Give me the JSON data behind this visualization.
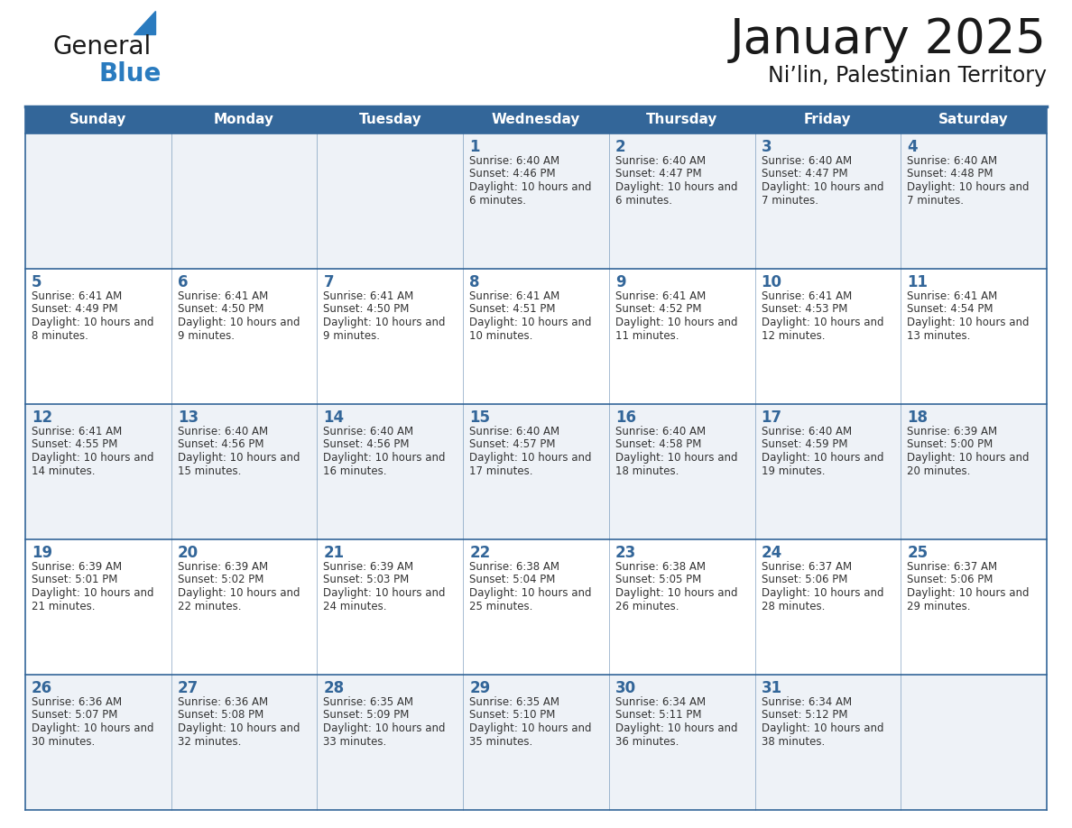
{
  "title": "January 2025",
  "subtitle": "Ni’lin, Palestinian Territory",
  "days_of_week": [
    "Sunday",
    "Monday",
    "Tuesday",
    "Wednesday",
    "Thursday",
    "Friday",
    "Saturday"
  ],
  "header_bg": "#336699",
  "header_text_color": "#ffffff",
  "cell_bg_odd": "#eef2f7",
  "cell_bg_even": "#ffffff",
  "grid_line_color": "#336699",
  "text_color_day": "#336699",
  "text_color_info": "#333333",
  "background_color": "#ffffff",
  "logo_general_color": "#1a1a1a",
  "logo_blue_color": "#2a7bbf",
  "logo_triangle_color": "#2a7bbf",
  "title_color": "#1a1a1a",
  "calendar_data": [
    [
      null,
      null,
      null,
      {
        "day": 1,
        "sunrise": "6:40 AM",
        "sunset": "4:46 PM",
        "daylight": "10 hours and 6 minutes."
      },
      {
        "day": 2,
        "sunrise": "6:40 AM",
        "sunset": "4:47 PM",
        "daylight": "10 hours and 6 minutes."
      },
      {
        "day": 3,
        "sunrise": "6:40 AM",
        "sunset": "4:47 PM",
        "daylight": "10 hours and 7 minutes."
      },
      {
        "day": 4,
        "sunrise": "6:40 AM",
        "sunset": "4:48 PM",
        "daylight": "10 hours and 7 minutes."
      }
    ],
    [
      {
        "day": 5,
        "sunrise": "6:41 AM",
        "sunset": "4:49 PM",
        "daylight": "10 hours and 8 minutes."
      },
      {
        "day": 6,
        "sunrise": "6:41 AM",
        "sunset": "4:50 PM",
        "daylight": "10 hours and 9 minutes."
      },
      {
        "day": 7,
        "sunrise": "6:41 AM",
        "sunset": "4:50 PM",
        "daylight": "10 hours and 9 minutes."
      },
      {
        "day": 8,
        "sunrise": "6:41 AM",
        "sunset": "4:51 PM",
        "daylight": "10 hours and 10 minutes."
      },
      {
        "day": 9,
        "sunrise": "6:41 AM",
        "sunset": "4:52 PM",
        "daylight": "10 hours and 11 minutes."
      },
      {
        "day": 10,
        "sunrise": "6:41 AM",
        "sunset": "4:53 PM",
        "daylight": "10 hours and 12 minutes."
      },
      {
        "day": 11,
        "sunrise": "6:41 AM",
        "sunset": "4:54 PM",
        "daylight": "10 hours and 13 minutes."
      }
    ],
    [
      {
        "day": 12,
        "sunrise": "6:41 AM",
        "sunset": "4:55 PM",
        "daylight": "10 hours and 14 minutes."
      },
      {
        "day": 13,
        "sunrise": "6:40 AM",
        "sunset": "4:56 PM",
        "daylight": "10 hours and 15 minutes."
      },
      {
        "day": 14,
        "sunrise": "6:40 AM",
        "sunset": "4:56 PM",
        "daylight": "10 hours and 16 minutes."
      },
      {
        "day": 15,
        "sunrise": "6:40 AM",
        "sunset": "4:57 PM",
        "daylight": "10 hours and 17 minutes."
      },
      {
        "day": 16,
        "sunrise": "6:40 AM",
        "sunset": "4:58 PM",
        "daylight": "10 hours and 18 minutes."
      },
      {
        "day": 17,
        "sunrise": "6:40 AM",
        "sunset": "4:59 PM",
        "daylight": "10 hours and 19 minutes."
      },
      {
        "day": 18,
        "sunrise": "6:39 AM",
        "sunset": "5:00 PM",
        "daylight": "10 hours and 20 minutes."
      }
    ],
    [
      {
        "day": 19,
        "sunrise": "6:39 AM",
        "sunset": "5:01 PM",
        "daylight": "10 hours and 21 minutes."
      },
      {
        "day": 20,
        "sunrise": "6:39 AM",
        "sunset": "5:02 PM",
        "daylight": "10 hours and 22 minutes."
      },
      {
        "day": 21,
        "sunrise": "6:39 AM",
        "sunset": "5:03 PM",
        "daylight": "10 hours and 24 minutes."
      },
      {
        "day": 22,
        "sunrise": "6:38 AM",
        "sunset": "5:04 PM",
        "daylight": "10 hours and 25 minutes."
      },
      {
        "day": 23,
        "sunrise": "6:38 AM",
        "sunset": "5:05 PM",
        "daylight": "10 hours and 26 minutes."
      },
      {
        "day": 24,
        "sunrise": "6:37 AM",
        "sunset": "5:06 PM",
        "daylight": "10 hours and 28 minutes."
      },
      {
        "day": 25,
        "sunrise": "6:37 AM",
        "sunset": "5:06 PM",
        "daylight": "10 hours and 29 minutes."
      }
    ],
    [
      {
        "day": 26,
        "sunrise": "6:36 AM",
        "sunset": "5:07 PM",
        "daylight": "10 hours and 30 minutes."
      },
      {
        "day": 27,
        "sunrise": "6:36 AM",
        "sunset": "5:08 PM",
        "daylight": "10 hours and 32 minutes."
      },
      {
        "day": 28,
        "sunrise": "6:35 AM",
        "sunset": "5:09 PM",
        "daylight": "10 hours and 33 minutes."
      },
      {
        "day": 29,
        "sunrise": "6:35 AM",
        "sunset": "5:10 PM",
        "daylight": "10 hours and 35 minutes."
      },
      {
        "day": 30,
        "sunrise": "6:34 AM",
        "sunset": "5:11 PM",
        "daylight": "10 hours and 36 minutes."
      },
      {
        "day": 31,
        "sunrise": "6:34 AM",
        "sunset": "5:12 PM",
        "daylight": "10 hours and 38 minutes."
      },
      null
    ]
  ]
}
